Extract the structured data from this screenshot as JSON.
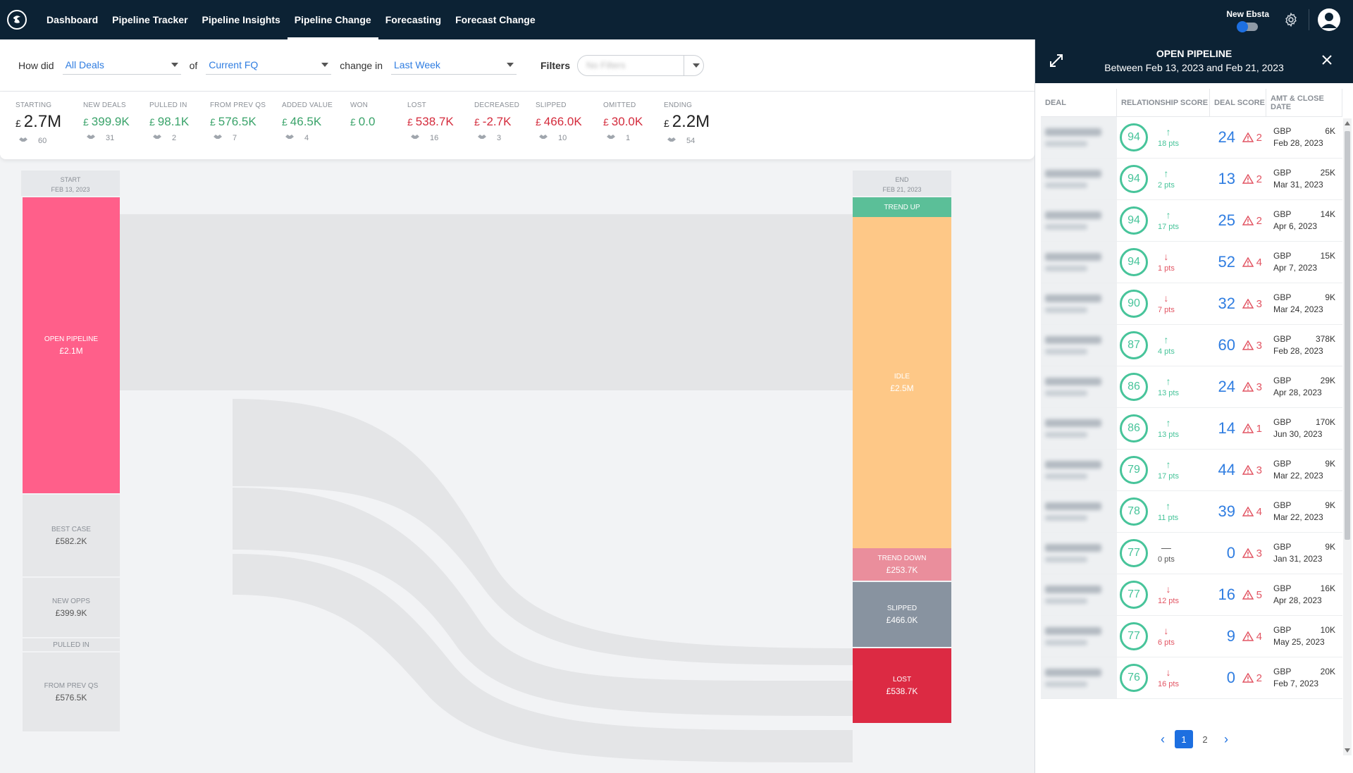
{
  "nav": {
    "tabs": [
      {
        "label": "Dashboard"
      },
      {
        "label": "Pipeline Tracker"
      },
      {
        "label": "Pipeline Insights"
      },
      {
        "label": "Pipeline Change"
      },
      {
        "label": "Forecasting"
      },
      {
        "label": "Forecast Change"
      }
    ],
    "active_tab": "Pipeline Change",
    "toggle_label": "New Ebsta"
  },
  "filter": {
    "how_did_label": "How did",
    "deals_value": "All Deals",
    "of_label": "of",
    "period_value": "Current FQ",
    "change_in_label": "change in",
    "change_value": "Last Week",
    "filters_label": "Filters",
    "filter_placeholder": "No Filters"
  },
  "stats": [
    {
      "label": "STARTING",
      "currency": "£",
      "value": "2.7M",
      "count": "60",
      "color": "neutral"
    },
    {
      "label": "NEW DEALS",
      "currency": "£",
      "value": "399.9K",
      "count": "31",
      "color": "green"
    },
    {
      "label": "PULLED IN",
      "currency": "£",
      "value": "98.1K",
      "count": "2",
      "color": "green"
    },
    {
      "label": "FROM PREV QS",
      "currency": "£",
      "value": "576.5K",
      "count": "7",
      "color": "green"
    },
    {
      "label": "ADDED VALUE",
      "currency": "£",
      "value": "46.5K",
      "count": "4",
      "color": "green"
    },
    {
      "label": "WON",
      "currency": "£",
      "value": "0.0",
      "count": "",
      "color": "green"
    },
    {
      "label": "LOST",
      "currency": "£",
      "value": "538.7K",
      "count": "16",
      "color": "red"
    },
    {
      "label": "DECREASED",
      "currency": "£",
      "value": "-2.7K",
      "count": "3",
      "color": "red"
    },
    {
      "label": "SLIPPED",
      "currency": "£",
      "value": "466.0K",
      "count": "10",
      "color": "red"
    },
    {
      "label": "OMITTED",
      "currency": "£",
      "value": "30.0K",
      "count": "1",
      "color": "red"
    },
    {
      "label": "ENDING",
      "currency": "£",
      "value": "2.2M",
      "count": "54",
      "color": "neutral"
    }
  ],
  "sankey": {
    "start_header": {
      "title": "START",
      "date": "FEB 13, 2023"
    },
    "end_header": {
      "title": "END",
      "date": "FEB 21, 2023"
    },
    "left_nodes": [
      {
        "label": "OPEN PIPELINE",
        "value": "£2.1M",
        "color": "#ff5f8a"
      },
      {
        "label": "BEST CASE",
        "value": "£582.2K",
        "color": "#e6e7e9"
      },
      {
        "label": "NEW OPPS",
        "value": "£399.9K",
        "color": "#e6e7e9"
      },
      {
        "label": "PULLED IN",
        "value": "",
        "color": "#e6e7e9"
      },
      {
        "label": "FROM PREV QS",
        "value": "£576.5K",
        "color": "#e6e7e9"
      }
    ],
    "right_nodes": [
      {
        "label": "TREND UP",
        "value": "",
        "color": "#5bbf98"
      },
      {
        "label": "IDLE",
        "value": "£2.5M",
        "color": "#fec887"
      },
      {
        "label": "TREND DOWN",
        "value": "£253.7K",
        "color": "#ea8e9c"
      },
      {
        "label": "SLIPPED",
        "value": "£466.0K",
        "color": "#8893a0"
      },
      {
        "label": "LOST",
        "value": "£538.7K",
        "color": "#dc2a43"
      }
    ]
  },
  "panel": {
    "title": "OPEN PIPELINE",
    "subtitle": "Between Feb 13, 2023 and Feb 21, 2023",
    "columns": [
      "DEAL",
      "RELATIONSHIP SCORE",
      "DEAL SCORE",
      "AMT & CLOSE DATE"
    ],
    "rows": [
      {
        "rel": "94",
        "delta_dir": "up",
        "delta": "18 pts",
        "ds": "24",
        "warn": "2",
        "cur": "GBP",
        "amt": "6K",
        "date": "Feb 28, 2023"
      },
      {
        "rel": "94",
        "delta_dir": "up",
        "delta": "2 pts",
        "ds": "13",
        "warn": "2",
        "cur": "GBP",
        "amt": "25K",
        "date": "Mar 31, 2023"
      },
      {
        "rel": "94",
        "delta_dir": "up",
        "delta": "17 pts",
        "ds": "25",
        "warn": "2",
        "cur": "GBP",
        "amt": "14K",
        "date": "Apr 6, 2023"
      },
      {
        "rel": "94",
        "delta_dir": "down",
        "delta": "1 pts",
        "ds": "52",
        "warn": "4",
        "cur": "GBP",
        "amt": "15K",
        "date": "Apr 7, 2023"
      },
      {
        "rel": "90",
        "delta_dir": "down",
        "delta": "7 pts",
        "ds": "32",
        "warn": "3",
        "cur": "GBP",
        "amt": "9K",
        "date": "Mar 24, 2023"
      },
      {
        "rel": "87",
        "delta_dir": "up",
        "delta": "4 pts",
        "ds": "60",
        "warn": "3",
        "cur": "GBP",
        "amt": "378K",
        "date": "Feb 28, 2023"
      },
      {
        "rel": "86",
        "delta_dir": "up",
        "delta": "13 pts",
        "ds": "24",
        "warn": "3",
        "cur": "GBP",
        "amt": "29K",
        "date": "Apr 28, 2023"
      },
      {
        "rel": "86",
        "delta_dir": "up",
        "delta": "13 pts",
        "ds": "14",
        "warn": "1",
        "cur": "GBP",
        "amt": "170K",
        "date": "Jun 30, 2023"
      },
      {
        "rel": "79",
        "delta_dir": "up",
        "delta": "17 pts",
        "ds": "44",
        "warn": "3",
        "cur": "GBP",
        "amt": "9K",
        "date": "Mar 22, 2023"
      },
      {
        "rel": "78",
        "delta_dir": "up",
        "delta": "11 pts",
        "ds": "39",
        "warn": "4",
        "cur": "GBP",
        "amt": "9K",
        "date": "Mar 22, 2023"
      },
      {
        "rel": "77",
        "delta_dir": "flat",
        "delta": "0 pts",
        "ds": "0",
        "warn": "3",
        "cur": "GBP",
        "amt": "9K",
        "date": "Jan 31, 2023"
      },
      {
        "rel": "77",
        "delta_dir": "down",
        "delta": "12 pts",
        "ds": "16",
        "warn": "5",
        "cur": "GBP",
        "amt": "16K",
        "date": "Apr 28, 2023"
      },
      {
        "rel": "77",
        "delta_dir": "down",
        "delta": "6 pts",
        "ds": "9",
        "warn": "4",
        "cur": "GBP",
        "amt": "10K",
        "date": "May 25, 2023"
      },
      {
        "rel": "76",
        "delta_dir": "down",
        "delta": "16 pts",
        "ds": "0",
        "warn": "2",
        "cur": "GBP",
        "amt": "20K",
        "date": "Feb 7, 2023"
      }
    ],
    "pages": [
      "1",
      "2"
    ],
    "active_page": "1"
  }
}
